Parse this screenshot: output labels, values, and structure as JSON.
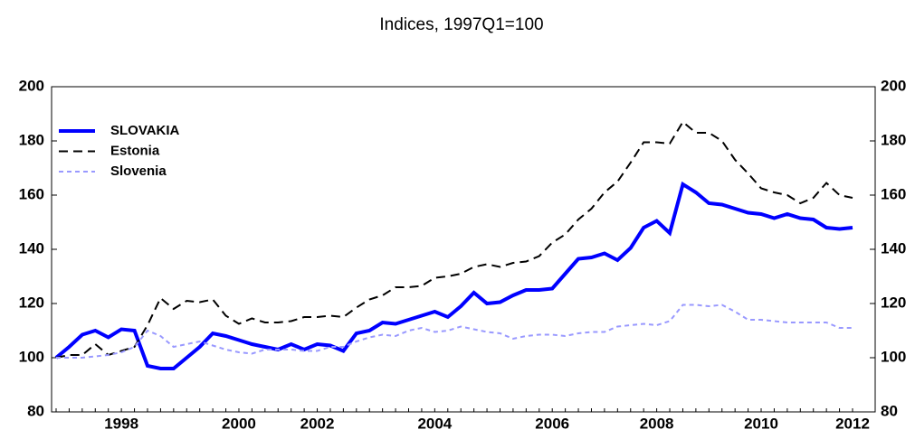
{
  "chart_data": {
    "type": "line",
    "title": "Indices, 1997Q1=100",
    "categories": [
      null,
      null,
      null,
      null,
      null,
      "1998",
      null,
      null,
      null,
      null,
      null,
      null,
      null,
      null,
      "2000",
      null,
      null,
      null,
      null,
      null,
      "2002",
      null,
      null,
      null,
      null,
      null,
      null,
      null,
      null,
      "2004",
      null,
      null,
      null,
      null,
      null,
      null,
      null,
      null,
      "2006",
      null,
      null,
      null,
      null,
      null,
      null,
      null,
      "2008",
      null,
      null,
      null,
      null,
      null,
      null,
      null,
      "2010",
      null,
      null,
      null,
      null,
      null,
      null,
      "2012"
    ],
    "series": [
      {
        "name": "SLOVAKIA",
        "color": "#0000ff",
        "width": 4,
        "dash": "none",
        "values": [
          100,
          104,
          108.5,
          110,
          107.5,
          110.5,
          110,
          97,
          96,
          96,
          100,
          104,
          109,
          108,
          106.5,
          105,
          104,
          103,
          105,
          103,
          105,
          104.5,
          102.5,
          109,
          110,
          113,
          112.5,
          114,
          115.5,
          117,
          115,
          119,
          124,
          120,
          120.5,
          123,
          125,
          125,
          125.5,
          131,
          136.5,
          137,
          138.5,
          136,
          140.5,
          148,
          150.5,
          146,
          164,
          161,
          157,
          156.5,
          155,
          153.5,
          153,
          151.5,
          153,
          151.5,
          151,
          148,
          147.5,
          148
        ]
      },
      {
        "name": "Estonia",
        "color": "#000000",
        "width": 2,
        "dash": "10,6",
        "values": [
          100,
          101,
          101,
          105,
          101,
          102.5,
          104,
          112,
          122,
          118,
          121,
          120.5,
          121.5,
          115.5,
          112.5,
          114.5,
          113,
          113,
          113.5,
          115,
          115,
          115.5,
          115,
          118.5,
          121.5,
          123,
          126,
          126,
          126.5,
          129.5,
          130,
          131,
          133.5,
          134.5,
          133.5,
          135,
          135.5,
          137.5,
          142.5,
          145.5,
          151,
          155,
          161,
          165,
          172,
          179.5,
          179.5,
          179,
          187,
          183,
          183,
          180,
          173,
          168,
          162.5,
          161,
          160,
          157,
          159,
          164.5,
          160,
          159
        ]
      },
      {
        "name": "Slovenia",
        "color": "#9999ff",
        "width": 2,
        "dash": "5,4",
        "values": [
          100,
          100,
          100,
          100.5,
          101,
          102,
          104,
          110,
          108,
          104,
          105,
          106,
          104.5,
          103,
          102,
          101.5,
          103,
          103,
          103,
          102.5,
          102.5,
          104,
          104,
          106,
          107.5,
          108.5,
          108,
          110,
          111,
          109.5,
          110,
          111.5,
          110.5,
          109.5,
          109,
          107,
          108,
          108.5,
          108.5,
          108,
          109,
          109.5,
          109.5,
          111.5,
          112,
          112.5,
          112,
          113.5,
          119.5,
          119.5,
          119,
          119.5,
          117,
          114,
          114,
          113.5,
          113,
          113,
          113,
          113,
          111,
          111
        ]
      }
    ],
    "ylim": [
      80,
      200
    ],
    "yticks": [
      80,
      100,
      120,
      140,
      160,
      180,
      200
    ],
    "y2lim": [
      80,
      200
    ],
    "y2ticks": [
      80,
      100,
      120,
      140,
      160,
      180,
      200
    ],
    "legend": "upper left",
    "grid": false
  }
}
